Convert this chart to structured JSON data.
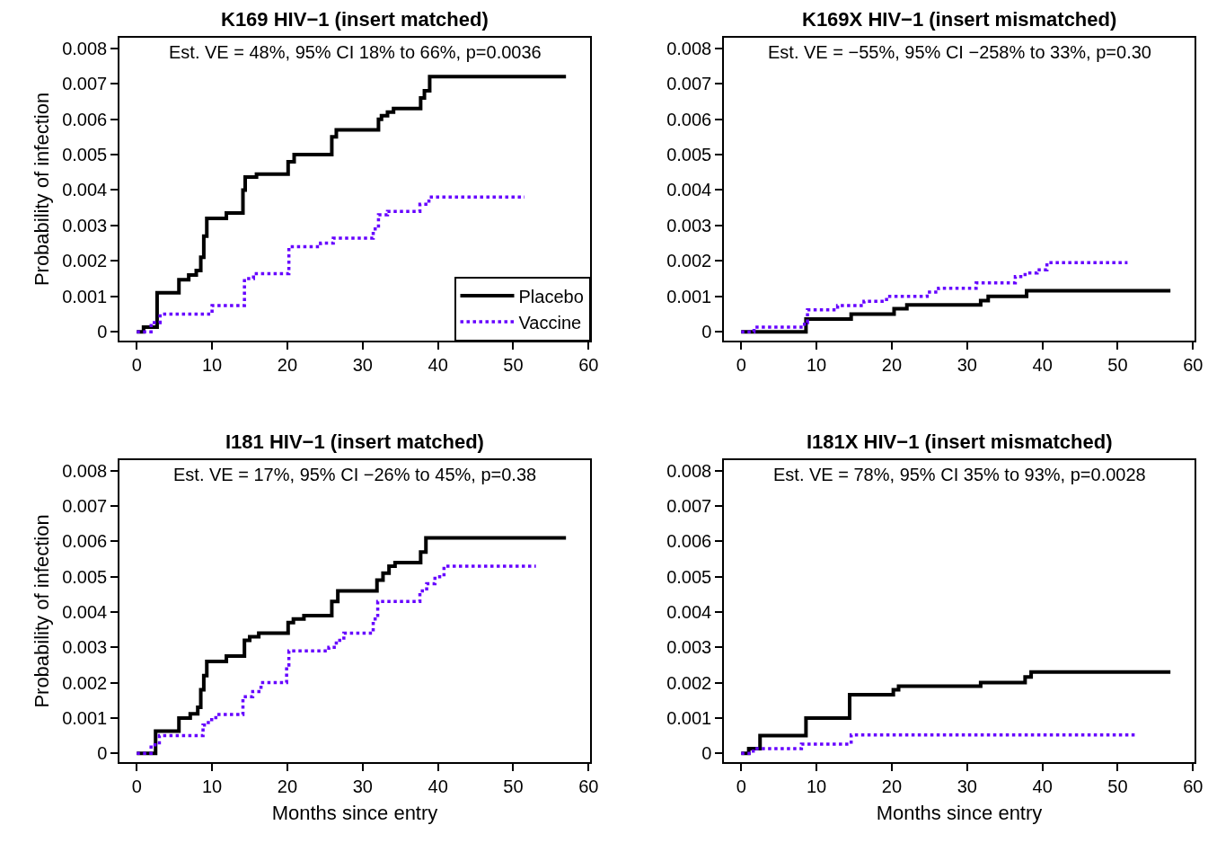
{
  "chart_data": [
    {
      "type": "step",
      "title": "K169 HIV−1 (insert matched)",
      "ylabel": "Probability of infection",
      "annotations": [
        "Est. VE = 48%, 95% CI 18% to 66%, p=0.0036"
      ],
      "xlim": [
        -2.3,
        60.2
      ],
      "ylim": [
        -0.00025,
        0.0083
      ],
      "xticks": [
        0,
        10,
        20,
        30,
        40,
        50,
        60
      ],
      "yticks": [
        0,
        0.001,
        0.002,
        0.003,
        0.004,
        0.005,
        0.006,
        0.007,
        0.008
      ],
      "legend": "bottom right",
      "series": [
        {
          "name": "Placebo",
          "color": "#000000",
          "line_style": "solid",
          "x": [
            0,
            0.9,
            2.7,
            5.6,
            6.9,
            7.9,
            8.5,
            8.9,
            9.3,
            11.9,
            14.1,
            14.4,
            15.9,
            20.1,
            20.9,
            25.9,
            26.5,
            32.1,
            32.5,
            33.3,
            34.1,
            37.7,
            38.2,
            38.9,
            57
          ],
          "values": [
            0,
            0.00013,
            0.0011,
            0.00147,
            0.0016,
            0.00173,
            0.0021,
            0.0027,
            0.0032,
            0.00335,
            0.004,
            0.00437,
            0.00445,
            0.0048,
            0.005,
            0.0055,
            0.0057,
            0.006,
            0.0061,
            0.0062,
            0.0063,
            0.0066,
            0.0068,
            0.0072,
            0.0072
          ]
        },
        {
          "name": "Vaccine",
          "color": "#6600ff",
          "line_style": "dotted",
          "x": [
            0,
            1.9,
            3.1,
            10,
            14.3,
            15.5,
            20.2,
            24.4,
            26.1,
            31.4,
            32.1,
            33.3,
            37.6,
            38.8,
            51.5
          ],
          "values": [
            0,
            0.00026,
            0.0005,
            0.00074,
            0.0015,
            0.00164,
            0.0024,
            0.0025,
            0.00264,
            0.0029,
            0.0033,
            0.0034,
            0.0036,
            0.0038,
            0.0038
          ]
        }
      ]
    },
    {
      "type": "step",
      "title": "K169X HIV−1 (insert mismatched)",
      "annotations": [
        "Est. VE = −55%, 95% CI −258% to 33%, p=0.30"
      ],
      "xlim": [
        -2.3,
        60.2
      ],
      "ylim": [
        -0.00025,
        0.0083
      ],
      "xticks": [
        0,
        10,
        20,
        30,
        40,
        50,
        60
      ],
      "yticks": [
        0,
        0.001,
        0.002,
        0.003,
        0.004,
        0.005,
        0.006,
        0.007,
        0.008
      ],
      "series": [
        {
          "color": "#000000",
          "line_style": "solid",
          "x": [
            0,
            8.6,
            14.6,
            20.3,
            22.0,
            31.8,
            32.8,
            37.9,
            57
          ],
          "values": [
            0,
            0.00036,
            0.0005,
            0.00065,
            0.00076,
            0.00088,
            0.001,
            0.00116,
            0.00116
          ]
        },
        {
          "color": "#6600ff",
          "line_style": "dotted",
          "x": [
            0,
            1.7,
            8.4,
            8.8,
            12.8,
            16.3,
            19.3,
            24.7,
            26.2,
            31.2,
            36.4,
            37.7,
            39.3,
            40.6,
            51.3
          ],
          "values": [
            0,
            0.00013,
            0.00026,
            0.00062,
            0.00074,
            0.00086,
            0.001,
            0.00112,
            0.00123,
            0.00138,
            0.00156,
            0.00166,
            0.00175,
            0.00195,
            0.00195
          ]
        }
      ]
    },
    {
      "type": "step",
      "title": "I181 HIV−1 (insert matched)",
      "xlabel": "Months since entry",
      "ylabel": "Probability of infection",
      "annotations": [
        "Est. VE = 17%, 95% CI −26% to 45%, p=0.38"
      ],
      "xlim": [
        -2.3,
        60.2
      ],
      "ylim": [
        -0.00025,
        0.0083
      ],
      "xticks": [
        0,
        10,
        20,
        30,
        40,
        50,
        60
      ],
      "yticks": [
        0,
        0.001,
        0.002,
        0.003,
        0.004,
        0.005,
        0.006,
        0.007,
        0.008
      ],
      "series": [
        {
          "color": "#000000",
          "line_style": "solid",
          "x": [
            0,
            2.5,
            5.6,
            7.1,
            8.1,
            8.5,
            8.9,
            9.3,
            11.9,
            14.3,
            15.0,
            16.2,
            20.1,
            20.8,
            22.2,
            25.9,
            26.7,
            31.9,
            32.7,
            33.5,
            34.3,
            37.7,
            38.4,
            57
          ],
          "values": [
            0,
            0.00063,
            0.001,
            0.00112,
            0.0013,
            0.0018,
            0.0022,
            0.0026,
            0.00275,
            0.0032,
            0.0033,
            0.0034,
            0.0037,
            0.0038,
            0.0039,
            0.0043,
            0.0046,
            0.0049,
            0.0051,
            0.0053,
            0.0054,
            0.0057,
            0.0061,
            0.0061
          ]
        },
        {
          "color": "#6600ff",
          "line_style": "dotted",
          "x": [
            0,
            1.9,
            3.0,
            8.8,
            9.5,
            10.5,
            14.1,
            15.4,
            16.5,
            19.9,
            20.2,
            25.5,
            26.5,
            27.5,
            31.4,
            32.0,
            37.6,
            38.5,
            39.6,
            40.8,
            53
          ],
          "values": [
            0,
            0.00024,
            0.0005,
            0.0008,
            0.00095,
            0.0011,
            0.0016,
            0.00175,
            0.002,
            0.0025,
            0.0029,
            0.003,
            0.0032,
            0.0034,
            0.0038,
            0.0043,
            0.0046,
            0.0048,
            0.005,
            0.0053,
            0.0053
          ]
        }
      ]
    },
    {
      "type": "step",
      "title": "I181X HIV−1 (insert mismatched)",
      "xlabel": "Months since entry",
      "annotations": [
        "Est. VE = 78%, 95% CI 35% to 93%, p=0.0028"
      ],
      "xlim": [
        -2.3,
        60.2
      ],
      "ylim": [
        -0.00025,
        0.0083
      ],
      "xticks": [
        0,
        10,
        20,
        30,
        40,
        50,
        60
      ],
      "yticks": [
        0,
        0.001,
        0.002,
        0.003,
        0.004,
        0.005,
        0.006,
        0.007,
        0.008
      ],
      "series": [
        {
          "color": "#000000",
          "line_style": "solid",
          "x": [
            0,
            1.0,
            2.5,
            8.6,
            14.4,
            20.2,
            20.9,
            31.8,
            37.7,
            38.5,
            57
          ],
          "values": [
            0,
            0.00013,
            0.0005,
            0.001,
            0.00166,
            0.0018,
            0.0019,
            0.002,
            0.00216,
            0.0023,
            0.0023
          ]
        },
        {
          "color": "#6600ff",
          "line_style": "dotted",
          "x": [
            0,
            1.6,
            8.0,
            14.6,
            52.5
          ],
          "values": [
            0,
            0.00013,
            0.00026,
            0.00052,
            0.00052
          ]
        }
      ]
    }
  ]
}
